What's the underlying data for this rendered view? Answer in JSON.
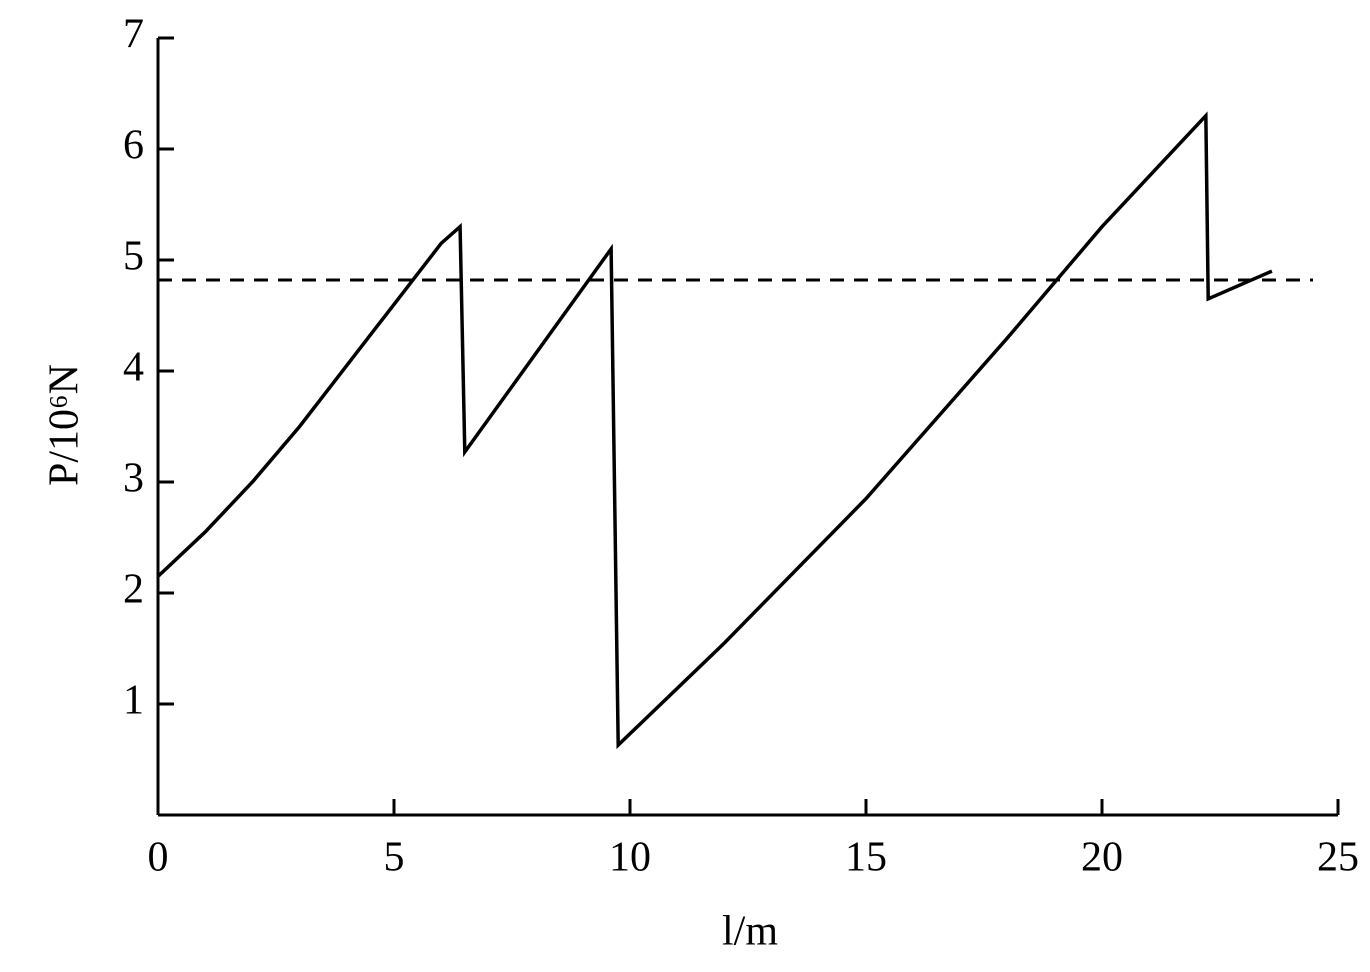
{
  "chart_data": {
    "type": "line",
    "x_label": "l/m",
    "y_label": "P/10⁶N",
    "x": [
      0,
      1,
      2,
      3,
      4,
      5,
      6,
      6.4,
      6.5,
      9.6,
      9.75,
      12,
      15,
      18,
      20,
      22.2,
      22.25,
      23.6
    ],
    "values": [
      2.15,
      2.55,
      3.0,
      3.5,
      4.05,
      4.6,
      5.15,
      5.3,
      3.27,
      5.1,
      0.63,
      1.55,
      2.85,
      4.3,
      5.3,
      6.3,
      4.65,
      4.9
    ],
    "color": "#000000",
    "reference_y": 4.82,
    "xlim": [
      0,
      25
    ],
    "xticks": [
      0,
      5,
      10,
      15,
      20,
      25
    ],
    "ylim": [
      0,
      7
    ],
    "yticks": [
      1,
      2,
      3,
      4,
      5,
      6,
      7
    ],
    "grid": false
  }
}
